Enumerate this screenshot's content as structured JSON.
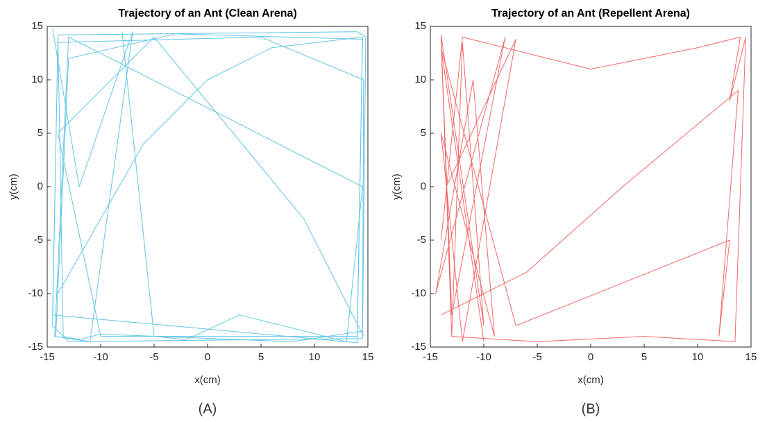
{
  "chart_data": [
    {
      "type": "line",
      "title": "Trajectory of an Ant (Clean Arena)",
      "xlabel": "x(cm)",
      "ylabel": "y(cm)",
      "caption": "(A)",
      "xlim": [
        -15,
        15
      ],
      "ylim": [
        -15,
        15
      ],
      "xticks": [
        -15,
        -10,
        -5,
        0,
        5,
        10,
        15
      ],
      "yticks": [
        -15,
        -10,
        -5,
        0,
        5,
        10,
        15
      ],
      "series": [
        {
          "color": "#5ec4e6",
          "x": [
            -14,
            -14.5,
            -13,
            14.5,
            14.8,
            14,
            -14,
            -13.5,
            -12,
            -10,
            8,
            14.5,
            14.6,
            5,
            -14,
            -14.5,
            14,
            14.5,
            -3,
            -13,
            -14.2
          ],
          "values": [
            14,
            -13,
            -14.5,
            -14.2,
            14,
            14.5,
            14.2,
            -14,
            -14.3,
            -13.8,
            -14.5,
            -13.5,
            10,
            14,
            13.5,
            -12,
            -14.6,
            13.8,
            14.3,
            12,
            -14
          ]
        },
        {
          "color": "#5ec4e6",
          "x": [
            -14,
            -6,
            0,
            6,
            14.5,
            14,
            -10,
            -14,
            -5,
            9,
            14.6
          ],
          "values": [
            -10,
            4,
            10,
            13,
            14,
            -14,
            -14,
            5,
            14,
            -3,
            -14
          ]
        },
        {
          "color": "#5ec4e6",
          "x": [
            -8,
            -5,
            -2,
            3,
            13,
            14.5,
            -13,
            -14.3,
            -11,
            -7,
            -12,
            -14.5
          ],
          "values": [
            14.5,
            -14,
            -14.3,
            -12,
            -14.5,
            0,
            14,
            -14,
            -14.5,
            14.5,
            0,
            14.8
          ]
        }
      ]
    },
    {
      "type": "line",
      "title": "Trajectory of an Ant (Repellent Arena)",
      "xlabel": "x(cm)",
      "ylabel": "y(cm)",
      "caption": "(B)",
      "xlim": [
        -15,
        15
      ],
      "ylim": [
        -15,
        15
      ],
      "xticks": [
        -15,
        -10,
        -5,
        0,
        5,
        10,
        15
      ],
      "yticks": [
        -15,
        -10,
        -5,
        0,
        5,
        10,
        15
      ],
      "series": [
        {
          "color": "#f26666",
          "x": [
            -14,
            -13,
            -12,
            -10,
            -14,
            -13,
            -8,
            -14.5,
            -11,
            -9,
            -14,
            -12,
            -7,
            -13.5
          ],
          "values": [
            14,
            -14,
            13.5,
            -13,
            14.2,
            -12,
            14,
            -10,
            10,
            -14,
            5,
            -14.5,
            13.8,
            0
          ]
        },
        {
          "color": "#f26666",
          "x": [
            -13,
            -5,
            5,
            13.5,
            14.5,
            13,
            14,
            10,
            0,
            -12,
            -14
          ],
          "values": [
            -14,
            -14.5,
            -14,
            -14.5,
            14,
            8,
            14,
            13,
            11,
            14,
            -5
          ]
        },
        {
          "color": "#f26666",
          "x": [
            -14,
            -6,
            3,
            13.8,
            12,
            13,
            -7,
            -14,
            -10
          ],
          "values": [
            -12,
            -8,
            0,
            9,
            -14,
            -5,
            -13,
            13,
            -14.5
          ]
        }
      ]
    }
  ]
}
